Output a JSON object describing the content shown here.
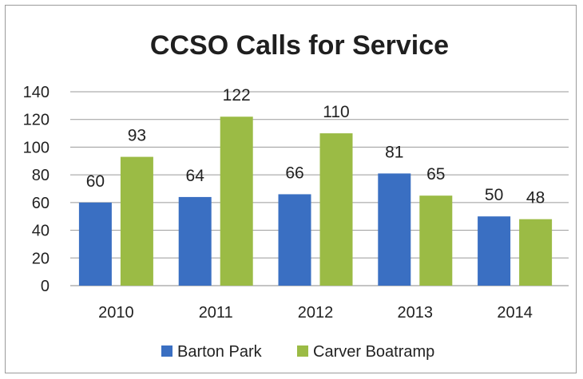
{
  "chart_data": {
    "type": "bar",
    "title": "CCSO Calls for Service",
    "xlabel": "",
    "ylabel": "",
    "categories": [
      "2010",
      "2011",
      "2012",
      "2013",
      "2014"
    ],
    "series": [
      {
        "name": "Barton Park",
        "values": [
          60,
          64,
          66,
          81,
          50
        ],
        "color": "#3a6fc2"
      },
      {
        "name": "Carver Boatramp",
        "values": [
          93,
          122,
          110,
          65,
          48
        ],
        "color": "#9bbb45"
      }
    ],
    "ylim": [
      0,
      140
    ],
    "yticks": [
      0,
      20,
      40,
      60,
      80,
      100,
      120,
      140
    ],
    "grid": true,
    "legend": "bottom",
    "data_labels": true
  }
}
